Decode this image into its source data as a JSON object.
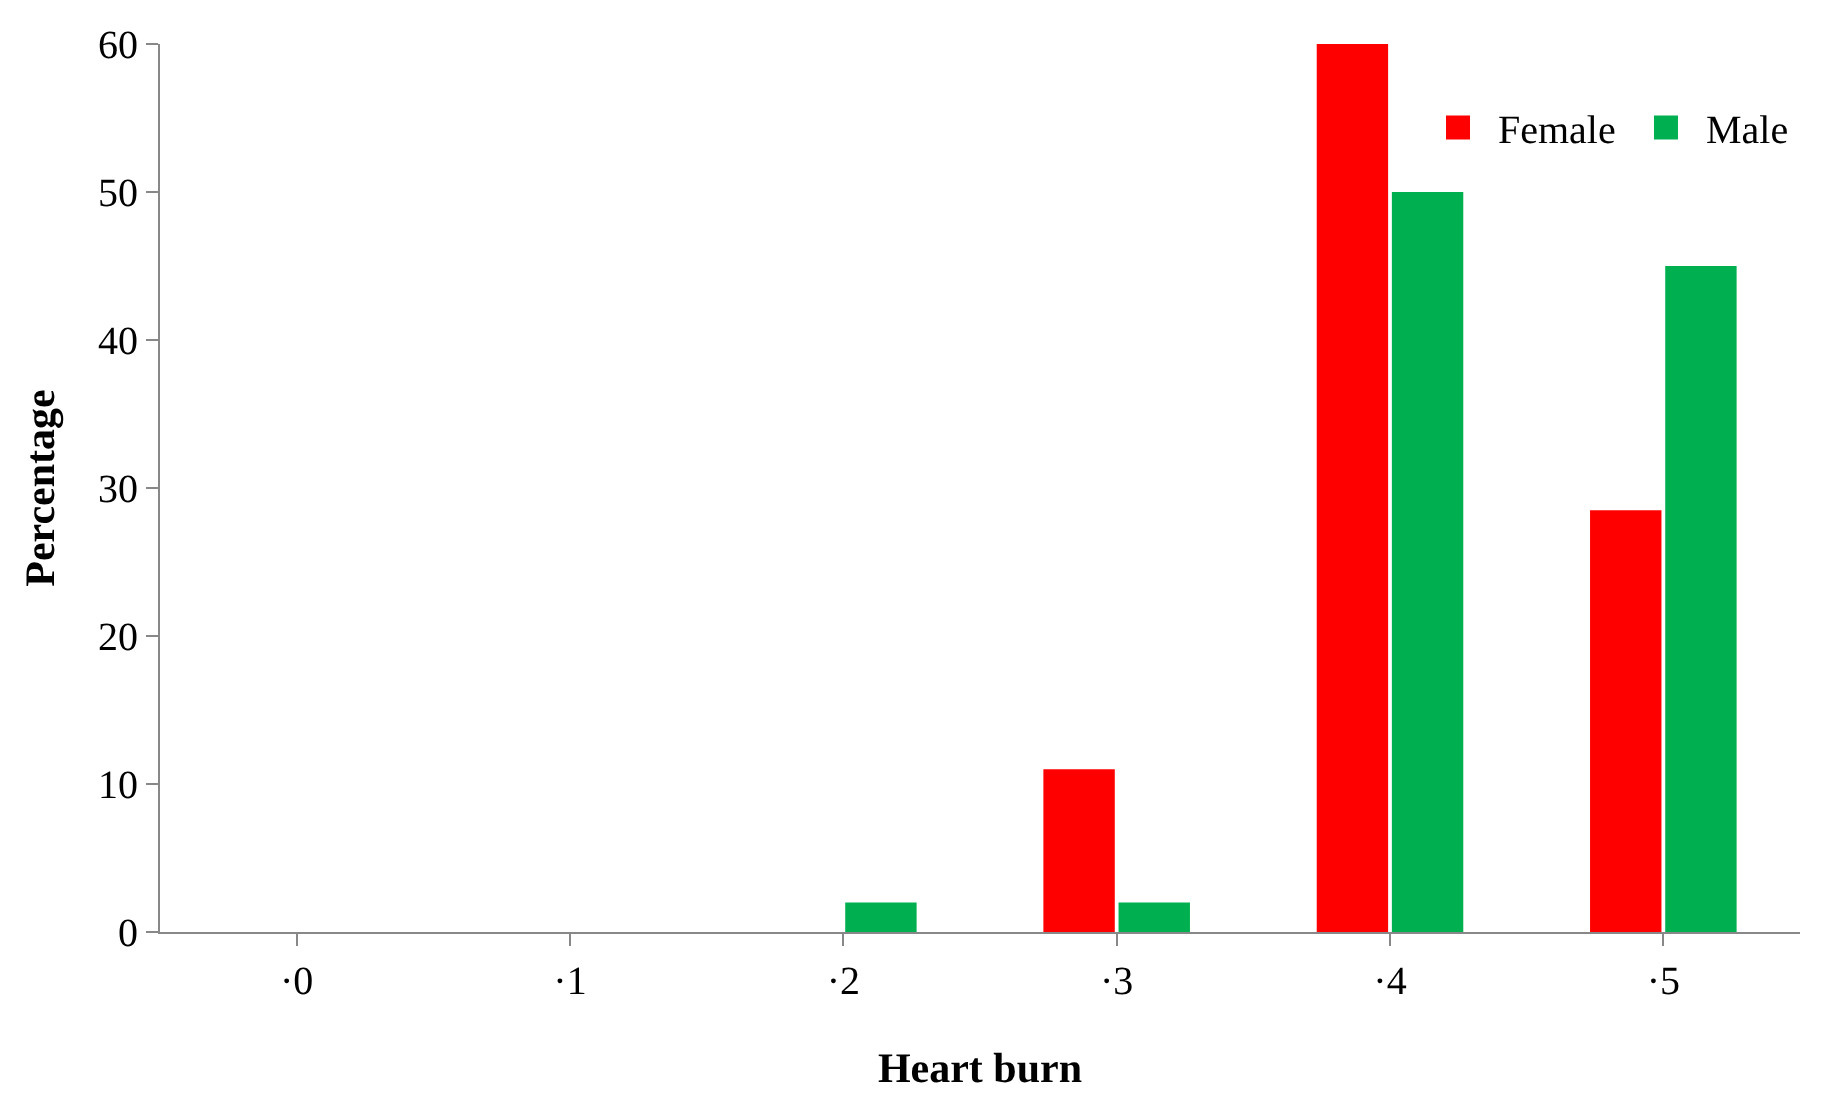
{
  "chart_data": {
    "type": "bar",
    "xlabel": "Heart burn",
    "ylabel": "Percentage",
    "categories": [
      "·0",
      "·1",
      "·2",
      "·3",
      "·4",
      "·5"
    ],
    "series": [
      {
        "name": "Female",
        "color": "#ff0000",
        "values": [
          0,
          0,
          0,
          11,
          60,
          28.5
        ]
      },
      {
        "name": "Male",
        "color": "#00b050",
        "values": [
          0,
          0,
          2,
          2,
          50,
          45
        ]
      }
    ],
    "ylim": [
      0,
      60
    ],
    "yticks": [
      0,
      10,
      20,
      30,
      40,
      50,
      60
    ],
    "legend": "top right"
  }
}
